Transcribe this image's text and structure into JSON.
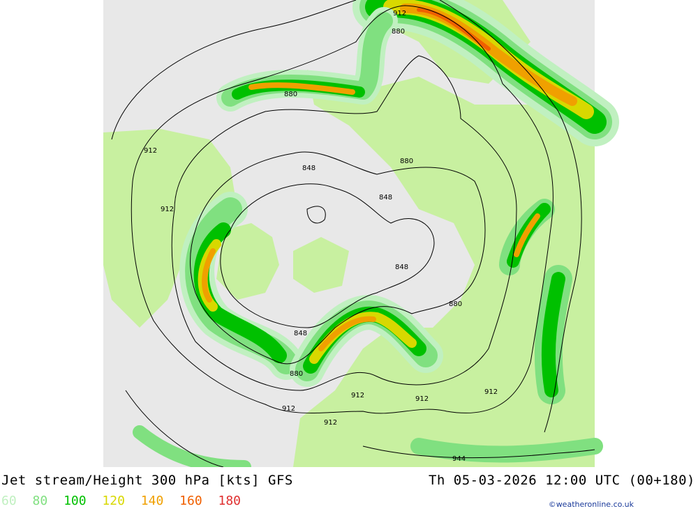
{
  "title": "Jet stream/Height 300 hPa [kts] GFS",
  "datetime": "Th 05-03-2026 12:00 UTC (00+180)",
  "legend": [
    {
      "label": "60",
      "color": "#c0f0c0"
    },
    {
      "label": "80",
      "color": "#80e080"
    },
    {
      "label": "100",
      "color": "#00c000"
    },
    {
      "label": "120",
      "color": "#d8d800"
    },
    {
      "label": "140",
      "color": "#f0a000"
    },
    {
      "label": "160",
      "color": "#f06000"
    },
    {
      "label": "180",
      "color": "#e03030"
    }
  ],
  "credit": "©weatheronline.co.uk",
  "contour_labels": [
    "912",
    "880",
    "880",
    "912",
    "912",
    "848",
    "880",
    "848",
    "848",
    "880",
    "848",
    "880",
    "912",
    "912",
    "912",
    "912",
    "912",
    "944"
  ],
  "colors": {
    "land": "#c8f0a0",
    "ocean": "#e8e8e8",
    "sea_ice": "#e8e8e8",
    "outside": "#ffffff"
  }
}
